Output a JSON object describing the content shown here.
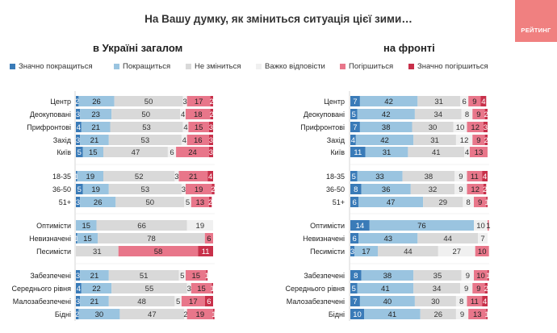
{
  "title": "На Вашу думку, як зміниться ситуація цієї зими…",
  "logo": "РЕЙТИНГ",
  "chart_data": {
    "type": "bar",
    "stacked": "horizontal-100",
    "legend_position": "top",
    "segments": [
      {
        "name": "Значно покращиться",
        "color": "#3a7bb8"
      },
      {
        "name": "Покращиться",
        "color": "#9ac4e0"
      },
      {
        "name": "Не зміниться",
        "color": "#d9d9d9"
      },
      {
        "name": "Важко відповісти",
        "color": "#f0f0f0"
      },
      {
        "name": "Погіршиться",
        "color": "#e8768a"
      },
      {
        "name": "Значно погіршиться",
        "color": "#c8304a"
      }
    ],
    "groups": [
      [
        "Центр",
        "Деокуповані",
        "Прифронтові",
        "Захід",
        "Київ"
      ],
      [
        "18-35",
        "36-50",
        "51+"
      ],
      [
        "Оптимісти",
        "Невизначені",
        "Песимісти"
      ],
      [
        "Забезпечені",
        "Середнього рівня",
        "Малозабезпечені",
        "Бідні"
      ]
    ],
    "panels": [
      {
        "title": "в Україні загалом",
        "rows": [
          [
            2,
            26,
            50,
            3,
            17,
            2
          ],
          [
            3,
            23,
            50,
            4,
            18,
            2
          ],
          [
            4,
            21,
            53,
            4,
            15,
            3
          ],
          [
            3,
            21,
            53,
            4,
            16,
            3
          ],
          [
            5,
            15,
            47,
            6,
            24,
            3
          ],
          [
            1,
            19,
            52,
            3,
            21,
            4
          ],
          [
            5,
            19,
            53,
            3,
            19,
            2
          ],
          [
            3,
            26,
            50,
            5,
            13,
            2
          ],
          [
            0,
            15,
            66,
            19,
            0,
            0
          ],
          [
            1,
            15,
            78,
            0,
            6,
            0
          ],
          [
            0,
            0,
            31,
            0,
            58,
            11
          ],
          [
            3,
            21,
            51,
            5,
            15,
            1
          ],
          [
            4,
            22,
            55,
            3,
            15,
            1
          ],
          [
            3,
            21,
            48,
            5,
            17,
            6
          ],
          [
            2,
            30,
            47,
            2,
            19,
            1
          ]
        ]
      },
      {
        "title": "на фронті",
        "rows": [
          [
            7,
            42,
            31,
            6,
            9,
            4
          ],
          [
            5,
            42,
            34,
            8,
            9,
            2
          ],
          [
            7,
            38,
            30,
            10,
            12,
            3
          ],
          [
            4,
            42,
            31,
            12,
            9,
            2
          ],
          [
            11,
            31,
            41,
            4,
            13,
            0
          ],
          [
            5,
            33,
            38,
            9,
            11,
            4
          ],
          [
            8,
            36,
            32,
            9,
            12,
            2
          ],
          [
            6,
            47,
            29,
            8,
            9,
            1
          ],
          [
            14,
            76,
            0,
            10,
            1,
            0
          ],
          [
            6,
            43,
            44,
            7,
            0,
            0
          ],
          [
            3,
            17,
            44,
            27,
            10,
            0
          ],
          [
            8,
            38,
            35,
            9,
            10,
            1
          ],
          [
            5,
            41,
            34,
            9,
            9,
            2
          ],
          [
            7,
            40,
            30,
            8,
            11,
            4
          ],
          [
            10,
            41,
            26,
            9,
            13,
            1
          ]
        ]
      }
    ]
  }
}
